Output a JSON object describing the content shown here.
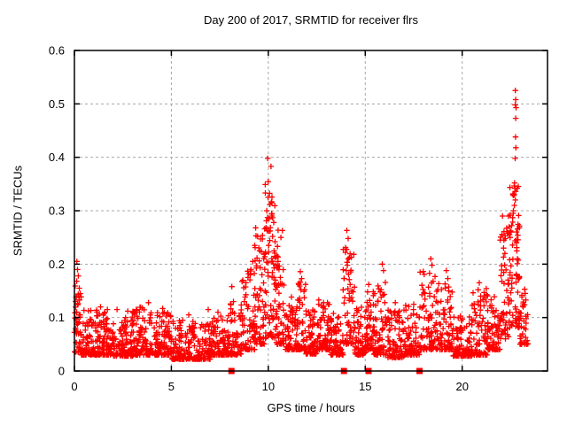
{
  "chart_data": {
    "type": "scatter",
    "title": "Day 200 of 2017, SRMTID for receiver flrs",
    "xlabel": "GPS time / hours",
    "ylabel": "SRMTID / TECUs",
    "xlim": [
      0,
      24.4
    ],
    "ylim": [
      0,
      0.6
    ],
    "xticks": [
      0,
      5,
      10,
      15,
      20
    ],
    "xtick_labels": [
      "0",
      "5",
      "10",
      "15",
      "20"
    ],
    "yticks": [
      0,
      0.1,
      0.2,
      0.3,
      0.4,
      0.5,
      0.6
    ],
    "ytick_labels": [
      "0",
      "0.1",
      "0.2",
      "0.3",
      "0.4",
      "0.5",
      "0.6"
    ],
    "grid": true,
    "legend": "none",
    "marker": "plus",
    "marker_color": "#ff0000",
    "grid_color": "#a8a8a8",
    "border_color": "#000000",
    "series_name": "SRMTID",
    "density_bands": [
      [
        0.0,
        0.35,
        45,
        0.035,
        0.16,
        1.6
      ],
      [
        0.35,
        1.0,
        70,
        0.03,
        0.115,
        2.6
      ],
      [
        1.0,
        2.0,
        110,
        0.03,
        0.115,
        2.6
      ],
      [
        2.0,
        3.0,
        110,
        0.028,
        0.105,
        2.6
      ],
      [
        3.0,
        4.0,
        110,
        0.03,
        0.12,
        2.6
      ],
      [
        4.0,
        5.0,
        110,
        0.03,
        0.11,
        2.6
      ],
      [
        5.0,
        6.0,
        105,
        0.022,
        0.095,
        2.6
      ],
      [
        6.0,
        7.0,
        105,
        0.022,
        0.095,
        2.6
      ],
      [
        7.0,
        8.0,
        105,
        0.03,
        0.105,
        2.6
      ],
      [
        8.0,
        8.6,
        55,
        0.03,
        0.13,
        2.4
      ],
      [
        8.6,
        9.3,
        70,
        0.04,
        0.19,
        2.0
      ],
      [
        9.3,
        9.8,
        60,
        0.05,
        0.26,
        1.9
      ],
      [
        9.8,
        10.35,
        70,
        0.06,
        0.36,
        1.7
      ],
      [
        10.35,
        10.85,
        55,
        0.05,
        0.27,
        2.0
      ],
      [
        10.85,
        11.45,
        65,
        0.04,
        0.14,
        2.4
      ],
      [
        11.45,
        11.95,
        55,
        0.04,
        0.17,
        2.2
      ],
      [
        11.95,
        12.5,
        65,
        0.032,
        0.115,
        2.6
      ],
      [
        12.5,
        13.2,
        80,
        0.04,
        0.135,
        2.4
      ],
      [
        13.2,
        13.85,
        70,
        0.03,
        0.115,
        2.6
      ],
      [
        13.85,
        14.45,
        55,
        0.05,
        0.24,
        1.9
      ],
      [
        14.45,
        15.05,
        65,
        0.03,
        0.125,
        2.5
      ],
      [
        15.05,
        15.45,
        45,
        0.04,
        0.15,
        2.3
      ],
      [
        15.45,
        16.1,
        65,
        0.03,
        0.18,
        2.3
      ],
      [
        16.1,
        17.0,
        90,
        0.025,
        0.115,
        2.6
      ],
      [
        17.0,
        17.8,
        80,
        0.03,
        0.125,
        2.5
      ],
      [
        17.8,
        18.7,
        80,
        0.04,
        0.19,
        2.2
      ],
      [
        18.7,
        19.5,
        80,
        0.04,
        0.17,
        2.3
      ],
      [
        19.5,
        20.5,
        100,
        0.028,
        0.105,
        2.6
      ],
      [
        20.5,
        21.3,
        80,
        0.03,
        0.155,
        2.4
      ],
      [
        21.3,
        21.95,
        70,
        0.04,
        0.145,
        2.3
      ],
      [
        21.95,
        22.45,
        55,
        0.06,
        0.27,
        1.8
      ],
      [
        22.45,
        22.95,
        65,
        0.08,
        0.35,
        1.7
      ],
      [
        22.95,
        23.4,
        35,
        0.05,
        0.15,
        2.3
      ]
    ],
    "peak_points": [
      [
        0.13,
        0.205
      ],
      [
        0.16,
        0.19
      ],
      [
        0.2,
        0.178
      ],
      [
        0.12,
        0.168
      ],
      [
        0.25,
        0.155
      ],
      [
        0.3,
        0.145
      ],
      [
        0.1,
        0.14
      ],
      [
        1.35,
        0.12
      ],
      [
        1.7,
        0.115
      ],
      [
        2.2,
        0.115
      ],
      [
        2.75,
        0.112
      ],
      [
        3.5,
        0.118
      ],
      [
        3.82,
        0.128
      ],
      [
        4.55,
        0.117
      ],
      [
        5.9,
        0.105
      ],
      [
        6.9,
        0.115
      ],
      [
        7.4,
        0.11
      ],
      [
        8.12,
        0.158
      ],
      [
        8.2,
        0.13
      ],
      [
        8.85,
        0.165
      ],
      [
        8.95,
        0.175
      ],
      [
        9.1,
        0.19
      ],
      [
        9.2,
        0.205
      ],
      [
        9.3,
        0.235
      ],
      [
        9.35,
        0.268
      ],
      [
        9.45,
        0.252
      ],
      [
        9.55,
        0.225
      ],
      [
        9.97,
        0.398
      ],
      [
        10.14,
        0.383
      ],
      [
        9.99,
        0.325
      ],
      [
        10.08,
        0.312
      ],
      [
        9.92,
        0.3
      ],
      [
        10.18,
        0.29
      ],
      [
        10.04,
        0.285
      ],
      [
        10.28,
        0.278
      ],
      [
        9.88,
        0.268
      ],
      [
        10.1,
        0.262
      ],
      [
        10.22,
        0.252
      ],
      [
        10.35,
        0.242
      ],
      [
        10.02,
        0.235
      ],
      [
        10.3,
        0.225
      ],
      [
        10.45,
        0.215
      ],
      [
        10.5,
        0.205
      ],
      [
        10.55,
        0.19
      ],
      [
        10.62,
        0.175
      ],
      [
        10.7,
        0.162
      ],
      [
        11.65,
        0.186
      ],
      [
        11.72,
        0.173
      ],
      [
        11.68,
        0.152
      ],
      [
        11.6,
        0.132
      ],
      [
        12.6,
        0.133
      ],
      [
        12.85,
        0.128
      ],
      [
        14.05,
        0.263
      ],
      [
        14.12,
        0.248
      ],
      [
        13.98,
        0.222
      ],
      [
        14.18,
        0.212
      ],
      [
        14.08,
        0.198
      ],
      [
        14.02,
        0.188
      ],
      [
        13.92,
        0.173
      ],
      [
        14.22,
        0.162
      ],
      [
        14.3,
        0.15
      ],
      [
        15.18,
        0.162
      ],
      [
        15.12,
        0.148
      ],
      [
        15.88,
        0.2
      ],
      [
        15.94,
        0.188
      ],
      [
        15.82,
        0.152
      ],
      [
        15.9,
        0.142
      ],
      [
        16.55,
        0.128
      ],
      [
        17.5,
        0.125
      ],
      [
        18.38,
        0.21
      ],
      [
        18.44,
        0.198
      ],
      [
        18.32,
        0.183
      ],
      [
        18.5,
        0.168
      ],
      [
        18.26,
        0.157
      ],
      [
        19.18,
        0.188
      ],
      [
        19.26,
        0.173
      ],
      [
        19.12,
        0.163
      ],
      [
        19.3,
        0.15
      ],
      [
        20.88,
        0.165
      ],
      [
        20.82,
        0.152
      ],
      [
        20.95,
        0.14
      ],
      [
        22.08,
        0.29
      ],
      [
        22.15,
        0.245
      ],
      [
        22.2,
        0.22
      ],
      [
        22.38,
        0.29
      ],
      [
        22.42,
        0.27
      ],
      [
        22.5,
        0.26
      ],
      [
        22.74,
        0.525
      ],
      [
        22.76,
        0.508
      ],
      [
        22.73,
        0.498
      ],
      [
        22.78,
        0.493
      ],
      [
        22.76,
        0.473
      ],
      [
        22.75,
        0.438
      ],
      [
        22.77,
        0.418
      ],
      [
        22.73,
        0.398
      ],
      [
        22.7,
        0.352
      ],
      [
        22.72,
        0.342
      ],
      [
        22.68,
        0.33
      ],
      [
        22.62,
        0.33
      ],
      [
        22.74,
        0.32
      ],
      [
        22.69,
        0.31
      ],
      [
        22.64,
        0.3
      ],
      [
        22.6,
        0.287
      ],
      [
        22.55,
        0.272
      ],
      [
        22.52,
        0.26
      ],
      [
        22.47,
        0.25
      ],
      [
        22.8,
        0.24
      ],
      [
        22.82,
        0.225
      ],
      [
        22.85,
        0.21
      ],
      [
        23.22,
        0.153
      ],
      [
        23.28,
        0.133
      ],
      [
        23.15,
        0.12
      ],
      [
        23.3,
        0.098
      ]
    ],
    "event_marks": {
      "marker": "filled-square",
      "y": 0,
      "x": [
        8.1,
        13.9,
        15.17,
        17.8
      ]
    }
  }
}
